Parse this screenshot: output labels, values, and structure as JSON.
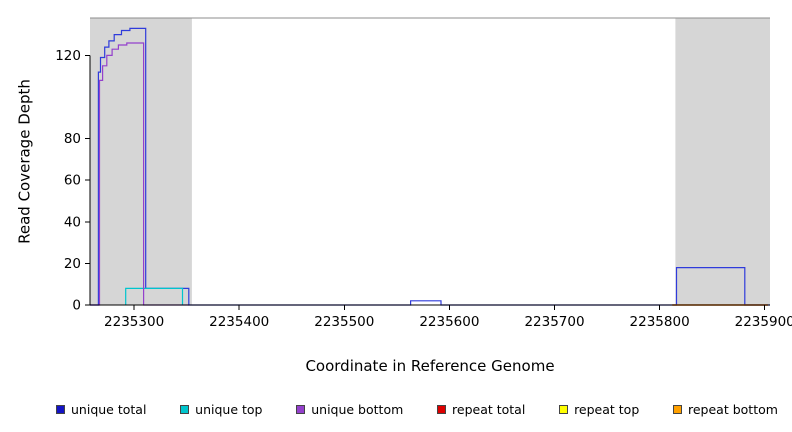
{
  "chart_data": {
    "type": "line",
    "title": "",
    "xlabel": "Coordinate in Reference Genome",
    "ylabel": "Read Coverage Depth",
    "xlim": [
      2235258,
      2235905
    ],
    "ylim": [
      0,
      138
    ],
    "x_ticks": [
      2235300,
      2235400,
      2235500,
      2235600,
      2235700,
      2235800,
      2235900
    ],
    "y_ticks": [
      0,
      20,
      40,
      60,
      80,
      120
    ],
    "grid": false,
    "legend_position": "bottom",
    "frame_top_color": "#8c8c8c",
    "band_color": "#d6d6d6",
    "axis_color": "#000000",
    "shaded_regions": [
      {
        "x0": 2235258,
        "x1": 2235355
      },
      {
        "x0": 2235815,
        "x1": 2235905
      }
    ],
    "series": [
      {
        "name": "unique total",
        "color": "#2f3bdb",
        "points": [
          [
            2235258,
            0
          ],
          [
            2235266,
            0
          ],
          [
            2235266,
            112
          ],
          [
            2235268,
            112
          ],
          [
            2235268,
            119
          ],
          [
            2235272,
            119
          ],
          [
            2235272,
            124
          ],
          [
            2235276,
            124
          ],
          [
            2235276,
            127
          ],
          [
            2235281,
            127
          ],
          [
            2235281,
            130
          ],
          [
            2235288,
            130
          ],
          [
            2235288,
            132
          ],
          [
            2235296,
            132
          ],
          [
            2235296,
            133
          ],
          [
            2235311,
            133
          ],
          [
            2235311,
            8
          ],
          [
            2235352,
            8
          ],
          [
            2235352,
            0
          ],
          [
            2235563,
            0
          ],
          [
            2235563,
            2
          ],
          [
            2235592,
            2
          ],
          [
            2235592,
            0
          ],
          [
            2235816,
            0
          ],
          [
            2235816,
            18
          ],
          [
            2235881,
            18
          ],
          [
            2235881,
            0
          ],
          [
            2235905,
            0
          ]
        ]
      },
      {
        "name": "unique top",
        "color": "#00c5cd",
        "points": [
          [
            2235292,
            0
          ],
          [
            2235292,
            8
          ],
          [
            2235346,
            8
          ],
          [
            2235346,
            0
          ]
        ]
      },
      {
        "name": "unique bottom",
        "color": "#9440cc",
        "points": [
          [
            2235258,
            0
          ],
          [
            2235267,
            0
          ],
          [
            2235267,
            108
          ],
          [
            2235270,
            108
          ],
          [
            2235270,
            115
          ],
          [
            2235274,
            115
          ],
          [
            2235274,
            120
          ],
          [
            2235279,
            120
          ],
          [
            2235279,
            123
          ],
          [
            2235285,
            123
          ],
          [
            2235285,
            125
          ],
          [
            2235293,
            125
          ],
          [
            2235293,
            126
          ],
          [
            2235309,
            126
          ],
          [
            2235309,
            0
          ],
          [
            2235352,
            0
          ]
        ]
      },
      {
        "name": "repeat top",
        "color": "#ffff00",
        "points": [
          [
            2235812,
            0
          ],
          [
            2235903,
            0
          ]
        ]
      },
      {
        "name": "repeat bottom",
        "color": "#ffa000",
        "points": [
          [
            2235812,
            0
          ],
          [
            2235903,
            0
          ]
        ]
      },
      {
        "name": "repeat total",
        "color": "#dd1111",
        "points": [
          [
            2235812,
            0
          ],
          [
            2235903,
            0
          ]
        ]
      }
    ]
  },
  "legend": {
    "items": [
      {
        "label": "unique total",
        "color": "#1414c4"
      },
      {
        "label": "unique top",
        "color": "#00c5cd"
      },
      {
        "label": "unique bottom",
        "color": "#9440cc"
      },
      {
        "label": "repeat total",
        "color": "#dd0000"
      },
      {
        "label": "repeat top",
        "color": "#ffff00"
      },
      {
        "label": "repeat bottom",
        "color": "#ffa000"
      }
    ]
  }
}
